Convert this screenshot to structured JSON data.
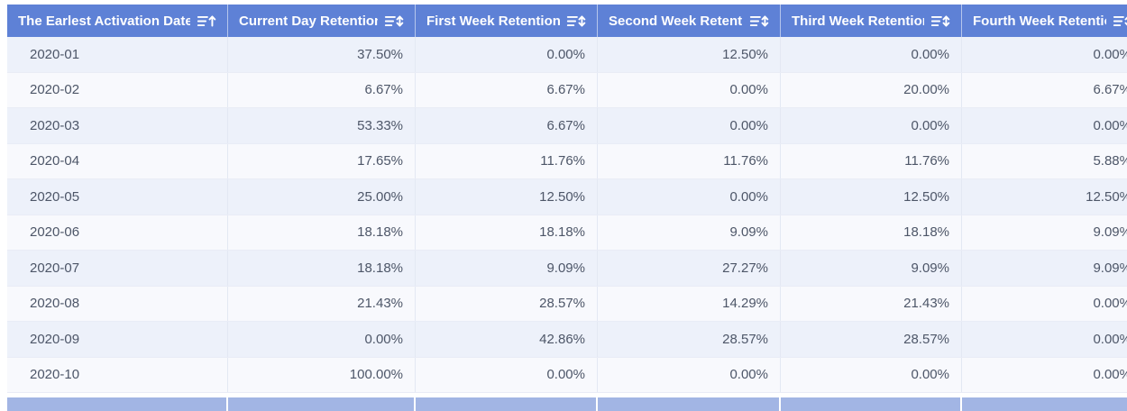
{
  "table": {
    "columns": [
      {
        "label": "The Earlest Activation Date",
        "sort_icon": "sort-ascending",
        "align": "center"
      },
      {
        "label": "Current Day Retention R",
        "sort_icon": "sort-updown",
        "align": "left"
      },
      {
        "label": "First Week Retention R",
        "sort_icon": "sort-updown",
        "align": "left"
      },
      {
        "label": "Second Week Retention",
        "sort_icon": "sort-updown",
        "align": "left"
      },
      {
        "label": "Third Week RetentionR",
        "sort_icon": "sort-updown",
        "align": "left"
      },
      {
        "label": "Fourth Week Retention",
        "sort_icon": "sort-updown",
        "align": "left"
      }
    ],
    "rows": [
      {
        "date": "2020-01",
        "values": [
          "37.50%",
          "0.00%",
          "12.50%",
          "0.00%",
          "0.00%"
        ]
      },
      {
        "date": "2020-02",
        "values": [
          "6.67%",
          "6.67%",
          "0.00%",
          "20.00%",
          "6.67%"
        ]
      },
      {
        "date": "2020-03",
        "values": [
          "53.33%",
          "6.67%",
          "0.00%",
          "0.00%",
          "0.00%"
        ]
      },
      {
        "date": "2020-04",
        "values": [
          "17.65%",
          "11.76%",
          "11.76%",
          "11.76%",
          "5.88%"
        ]
      },
      {
        "date": "2020-05",
        "values": [
          "25.00%",
          "12.50%",
          "0.00%",
          "12.50%",
          "12.50%"
        ]
      },
      {
        "date": "2020-06",
        "values": [
          "18.18%",
          "18.18%",
          "9.09%",
          "18.18%",
          "9.09%"
        ]
      },
      {
        "date": "2020-07",
        "values": [
          "18.18%",
          "9.09%",
          "27.27%",
          "9.09%",
          "9.09%"
        ]
      },
      {
        "date": "2020-08",
        "values": [
          "21.43%",
          "28.57%",
          "14.29%",
          "21.43%",
          "0.00%"
        ]
      },
      {
        "date": "2020-09",
        "values": [
          "0.00%",
          "42.86%",
          "28.57%",
          "28.57%",
          "0.00%"
        ]
      },
      {
        "date": "2020-10",
        "values": [
          "100.00%",
          "0.00%",
          "0.00%",
          "0.00%",
          "0.00%"
        ]
      }
    ]
  },
  "colors": {
    "header_bg": "#5e81d6",
    "footer_bg": "#a2b5e4",
    "row_odd_bg": "#edf1fa",
    "row_even_bg": "#f8f9fd",
    "cell_text": "#4d5668",
    "header_text": "#ffffff"
  }
}
